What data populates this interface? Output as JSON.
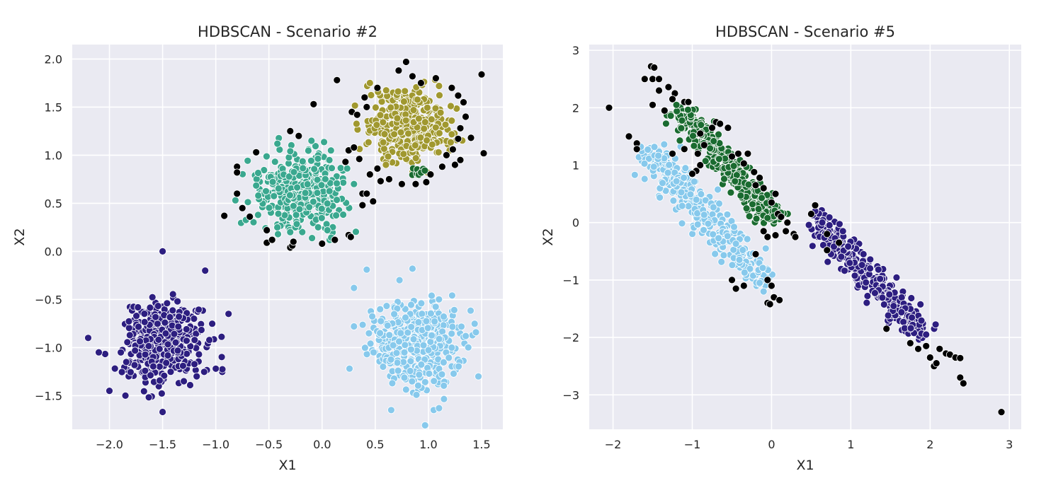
{
  "chart_data": [
    {
      "type": "scatter",
      "title": "HDBSCAN - Scenario #2",
      "xlabel": "X1",
      "ylabel": "X2",
      "xlim": [
        -2.35,
        1.7
      ],
      "ylim": [
        -1.85,
        2.15
      ],
      "xticks": [
        -2.0,
        -1.5,
        -1.0,
        -0.5,
        0.0,
        0.5,
        1.0,
        1.5
      ],
      "xtick_labels": [
        "−2.0",
        "−1.5",
        "−1.0",
        "−0.5",
        "0.0",
        "0.5",
        "1.0",
        "1.5"
      ],
      "yticks": [
        -1.5,
        -1.0,
        -0.5,
        0.0,
        0.5,
        1.0,
        1.5,
        2.0
      ],
      "ytick_labels": [
        "−1.5",
        "−1.0",
        "−0.5",
        "0.0",
        "0.5",
        "1.0",
        "1.5",
        "2.0"
      ],
      "grid": true,
      "clusters": [
        {
          "color": "#2d1e80",
          "center": [
            -1.5,
            -0.95
          ],
          "spread": [
            0.18,
            0.2
          ],
          "count": 420,
          "points": [
            [
              -2.2,
              -0.9
            ],
            [
              -2.0,
              -1.45
            ],
            [
              -1.85,
              -1.5
            ],
            [
              -1.5,
              -1.67
            ],
            [
              -1.5,
              0.0
            ],
            [
              -1.1,
              -0.2
            ],
            [
              -1.0,
              -1.22
            ],
            [
              -0.88,
              -0.65
            ],
            [
              -2.1,
              -1.05
            ],
            [
              -1.3,
              -1.35
            ]
          ]
        },
        {
          "color": "#3aa88f",
          "center": [
            -0.18,
            0.62
          ],
          "spread": [
            0.2,
            0.19
          ],
          "count": 420,
          "points": [
            [
              -0.42,
              1.12
            ],
            [
              -0.1,
              1.15
            ],
            [
              0.05,
              0.22
            ],
            [
              -0.3,
              0.2
            ],
            [
              0.3,
              0.7
            ],
            [
              -0.6,
              0.58
            ]
          ]
        },
        {
          "color": "#a0982f",
          "center": [
            0.82,
            1.3
          ],
          "spread": [
            0.19,
            0.17
          ],
          "count": 420,
          "points": [
            [
              0.45,
              1.75
            ],
            [
              1.1,
              1.72
            ],
            [
              0.6,
              0.9
            ],
            [
              1.2,
              1.05
            ]
          ]
        },
        {
          "color": "#1a6b30",
          "center": [
            0.9,
            0.82
          ],
          "spread": [
            0.04,
            0.03
          ],
          "count": 10,
          "points": []
        },
        {
          "color": "#87c9ec",
          "center": [
            0.88,
            -0.95
          ],
          "spread": [
            0.21,
            0.21
          ],
          "count": 420,
          "points": [
            [
              0.42,
              -0.19
            ],
            [
              0.85,
              -0.18
            ],
            [
              0.65,
              -1.65
            ],
            [
              1.05,
              -1.65
            ],
            [
              1.1,
              -1.63
            ],
            [
              1.47,
              -1.3
            ],
            [
              0.3,
              -0.38
            ],
            [
              0.3,
              -0.78
            ]
          ]
        },
        {
          "color": "#000000",
          "center": [
            0.0,
            0.0
          ],
          "spread": [
            0.0,
            0.0
          ],
          "count": 0,
          "points": [
            [
              -0.3,
              1.25
            ],
            [
              -0.22,
              1.2
            ],
            [
              -0.62,
              1.03
            ],
            [
              -0.8,
              0.88
            ],
            [
              -0.8,
              0.82
            ],
            [
              -0.8,
              0.6
            ],
            [
              -0.75,
              0.45
            ],
            [
              -0.92,
              0.37
            ],
            [
              -0.68,
              0.36
            ],
            [
              -0.52,
              0.22
            ],
            [
              -0.52,
              0.09
            ],
            [
              -0.47,
              0.12
            ],
            [
              -0.3,
              0.04
            ],
            [
              -0.28,
              0.06
            ],
            [
              0.0,
              0.08
            ],
            [
              0.12,
              0.12
            ],
            [
              0.25,
              0.17
            ],
            [
              0.27,
              0.15
            ],
            [
              0.38,
              0.6
            ],
            [
              0.42,
              0.6
            ],
            [
              0.38,
              0.48
            ],
            [
              0.48,
              0.52
            ],
            [
              0.45,
              0.8
            ],
            [
              0.52,
              0.86
            ],
            [
              0.25,
              1.05
            ],
            [
              0.3,
              1.08
            ],
            [
              0.22,
              0.93
            ],
            [
              0.35,
              0.96
            ],
            [
              -0.08,
              1.53
            ],
            [
              0.14,
              1.78
            ],
            [
              0.28,
              1.45
            ],
            [
              0.33,
              1.42
            ],
            [
              0.42,
              1.5
            ],
            [
              0.4,
              1.6
            ],
            [
              0.52,
              1.7
            ],
            [
              0.72,
              1.88
            ],
            [
              0.79,
              1.97
            ],
            [
              0.85,
              1.82
            ],
            [
              0.93,
              1.75
            ],
            [
              1.07,
              1.8
            ],
            [
              1.22,
              1.7
            ],
            [
              1.28,
              1.62
            ],
            [
              1.33,
              1.55
            ],
            [
              1.35,
              1.4
            ],
            [
              1.3,
              1.28
            ],
            [
              1.28,
              1.17
            ],
            [
              1.23,
              1.06
            ],
            [
              1.17,
              1.0
            ],
            [
              1.3,
              0.95
            ],
            [
              1.25,
              0.9
            ],
            [
              1.13,
              0.88
            ],
            [
              1.02,
              0.8
            ],
            [
              0.98,
              0.72
            ],
            [
              0.88,
              0.7
            ],
            [
              0.75,
              0.7
            ],
            [
              0.63,
              0.75
            ],
            [
              0.55,
              0.73
            ],
            [
              1.5,
              1.84
            ],
            [
              1.52,
              1.02
            ],
            [
              1.4,
              1.18
            ],
            [
              -0.27,
              0.1
            ]
          ]
        }
      ]
    },
    {
      "type": "scatter",
      "title": "HDBSCAN - Scenario #5",
      "xlabel": "X1",
      "ylabel": "X2",
      "xlim": [
        -2.3,
        3.15
      ],
      "ylim": [
        -3.6,
        3.1
      ],
      "xticks": [
        -2,
        -1,
        0,
        1,
        2,
        3
      ],
      "xtick_labels": [
        "−2",
        "−1",
        "0",
        "1",
        "2",
        "3"
      ],
      "yticks": [
        -3,
        -2,
        -1,
        0,
        1,
        2,
        3
      ],
      "ytick_labels": [
        "−3",
        "−2",
        "−1",
        "0",
        "1",
        "2",
        "3"
      ],
      "grid": true,
      "clusters": [
        {
          "color": "#87c9ec",
          "line": [
            [
              -1.55,
              1.25
            ],
            [
              -0.05,
              -1.1
            ]
          ],
          "width": 0.12,
          "count": 330,
          "points": [
            [
              -1.65,
              1.32
            ],
            [
              -1.2,
              0.72
            ],
            [
              -0.8,
              -0.02
            ],
            [
              -0.15,
              -1.05
            ],
            [
              -0.1,
              -1.2
            ]
          ]
        },
        {
          "color": "#1a6b30",
          "line": [
            [
              -1.15,
              1.95
            ],
            [
              0.05,
              0.05
            ]
          ],
          "width": 0.1,
          "count": 330,
          "points": [
            [
              -1.2,
              2.05
            ],
            [
              -0.05,
              0.08
            ]
          ]
        },
        {
          "color": "#2d1e80",
          "line": [
            [
              0.55,
              0.1
            ],
            [
              1.9,
              -1.95
            ]
          ],
          "width": 0.1,
          "count": 330,
          "points": [
            [
              0.55,
              0.2
            ],
            [
              1.95,
              -1.95
            ],
            [
              0.9,
              -0.15
            ]
          ]
        },
        {
          "color": "#000000",
          "line": [
            [
              0,
              0
            ],
            [
              0,
              0
            ]
          ],
          "width": 0,
          "count": 0,
          "points": [
            [
              -2.05,
              2.0
            ],
            [
              -1.52,
              2.72
            ],
            [
              -1.48,
              2.7
            ],
            [
              -1.6,
              2.5
            ],
            [
              -1.5,
              2.5
            ],
            [
              -1.42,
              2.5
            ],
            [
              -1.42,
              2.3
            ],
            [
              -1.3,
              2.36
            ],
            [
              -1.22,
              2.25
            ],
            [
              -1.25,
              2.15
            ],
            [
              -1.1,
              2.1
            ],
            [
              -1.05,
              2.1
            ],
            [
              -1.5,
              2.05
            ],
            [
              -1.35,
              1.95
            ],
            [
              -1.8,
              1.5
            ],
            [
              -1.7,
              1.38
            ],
            [
              -1.7,
              1.28
            ],
            [
              -1.25,
              1.2
            ],
            [
              -1.1,
              1.28
            ],
            [
              -0.93,
              1.2
            ],
            [
              -0.85,
              1.35
            ],
            [
              -0.9,
              1.55
            ],
            [
              -0.75,
              1.65
            ],
            [
              -0.7,
              1.75
            ],
            [
              -0.65,
              1.72
            ],
            [
              -0.55,
              1.65
            ],
            [
              -0.9,
              1.0
            ],
            [
              -0.95,
              0.9
            ],
            [
              -1.0,
              0.85
            ],
            [
              -0.42,
              1.2
            ],
            [
              -0.3,
              1.2
            ],
            [
              -0.5,
              1.15
            ],
            [
              -0.35,
              1.03
            ],
            [
              -0.22,
              0.88
            ],
            [
              -0.15,
              0.78
            ],
            [
              -0.2,
              0.65
            ],
            [
              -0.1,
              0.6
            ],
            [
              0.05,
              0.5
            ],
            [
              0.0,
              0.35
            ],
            [
              0.08,
              0.15
            ],
            [
              0.12,
              0.1
            ],
            [
              0.2,
              0.0
            ],
            [
              0.18,
              -0.15
            ],
            [
              0.28,
              -0.2
            ],
            [
              0.3,
              -0.25
            ],
            [
              0.05,
              -0.22
            ],
            [
              -0.05,
              -0.25
            ],
            [
              -0.1,
              -0.15
            ],
            [
              -0.2,
              -0.55
            ],
            [
              -0.5,
              -1.0
            ],
            [
              -0.45,
              -1.15
            ],
            [
              -0.35,
              -1.1
            ],
            [
              -0.05,
              -1.0
            ],
            [
              0.0,
              -1.1
            ],
            [
              0.03,
              -1.3
            ],
            [
              0.1,
              -1.35
            ],
            [
              -0.05,
              -1.4
            ],
            [
              -0.02,
              -1.42
            ],
            [
              0.5,
              0.15
            ],
            [
              0.55,
              0.3
            ],
            [
              0.7,
              -0.2
            ],
            [
              0.7,
              -0.48
            ],
            [
              0.85,
              -0.35
            ],
            [
              1.45,
              -1.85
            ],
            [
              1.75,
              -2.1
            ],
            [
              1.85,
              -2.2
            ],
            [
              1.95,
              -2.15
            ],
            [
              2.0,
              -2.35
            ],
            [
              2.05,
              -2.5
            ],
            [
              2.08,
              -2.45
            ],
            [
              2.12,
              -2.2
            ],
            [
              2.2,
              -2.28
            ],
            [
              2.25,
              -2.3
            ],
            [
              2.32,
              -2.35
            ],
            [
              2.38,
              -2.36
            ],
            [
              2.38,
              -2.7
            ],
            [
              2.42,
              -2.8
            ],
            [
              2.9,
              -3.3
            ]
          ]
        }
      ]
    }
  ]
}
